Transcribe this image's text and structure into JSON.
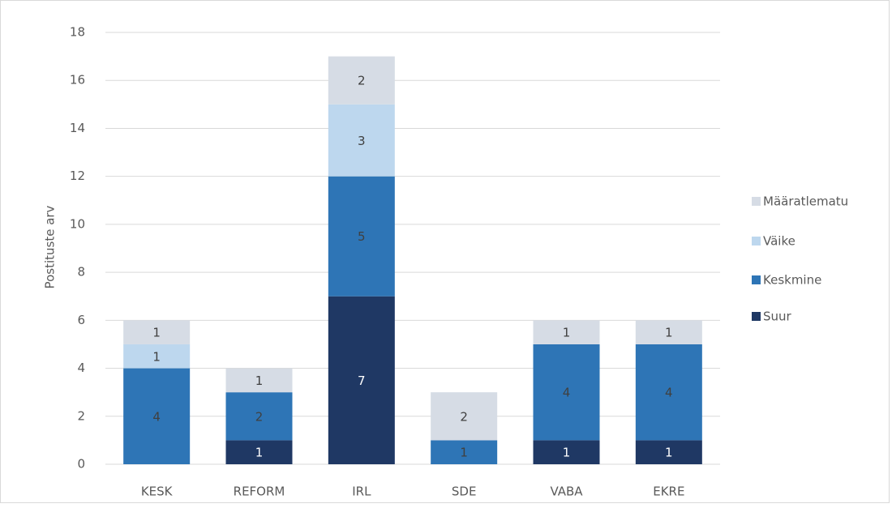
{
  "chart_data": {
    "type": "stacked_bar",
    "y_label": "Postituste arv",
    "categories": [
      "KESK",
      "REFORM",
      "IRL",
      "SDE",
      "VABA",
      "EKRE"
    ],
    "series": [
      {
        "name": "Suur",
        "color": "#1f3864",
        "values": [
          0,
          1,
          7,
          0,
          1,
          1
        ]
      },
      {
        "name": "Keskmine",
        "color": "#2e75b6",
        "values": [
          4,
          2,
          5,
          1,
          4,
          4
        ]
      },
      {
        "name": "Väike",
        "color": "#bdd7ee",
        "values": [
          1,
          0,
          3,
          0,
          0,
          0
        ]
      },
      {
        "name": "Määratlematu",
        "color": "#d6dce5",
        "values": [
          1,
          1,
          2,
          2,
          1,
          1
        ]
      }
    ],
    "ylim": [
      0,
      18
    ],
    "yticks": [
      0,
      2,
      4,
      6,
      8,
      10,
      12,
      14,
      16,
      18
    ],
    "grid": true,
    "legend": "right"
  }
}
